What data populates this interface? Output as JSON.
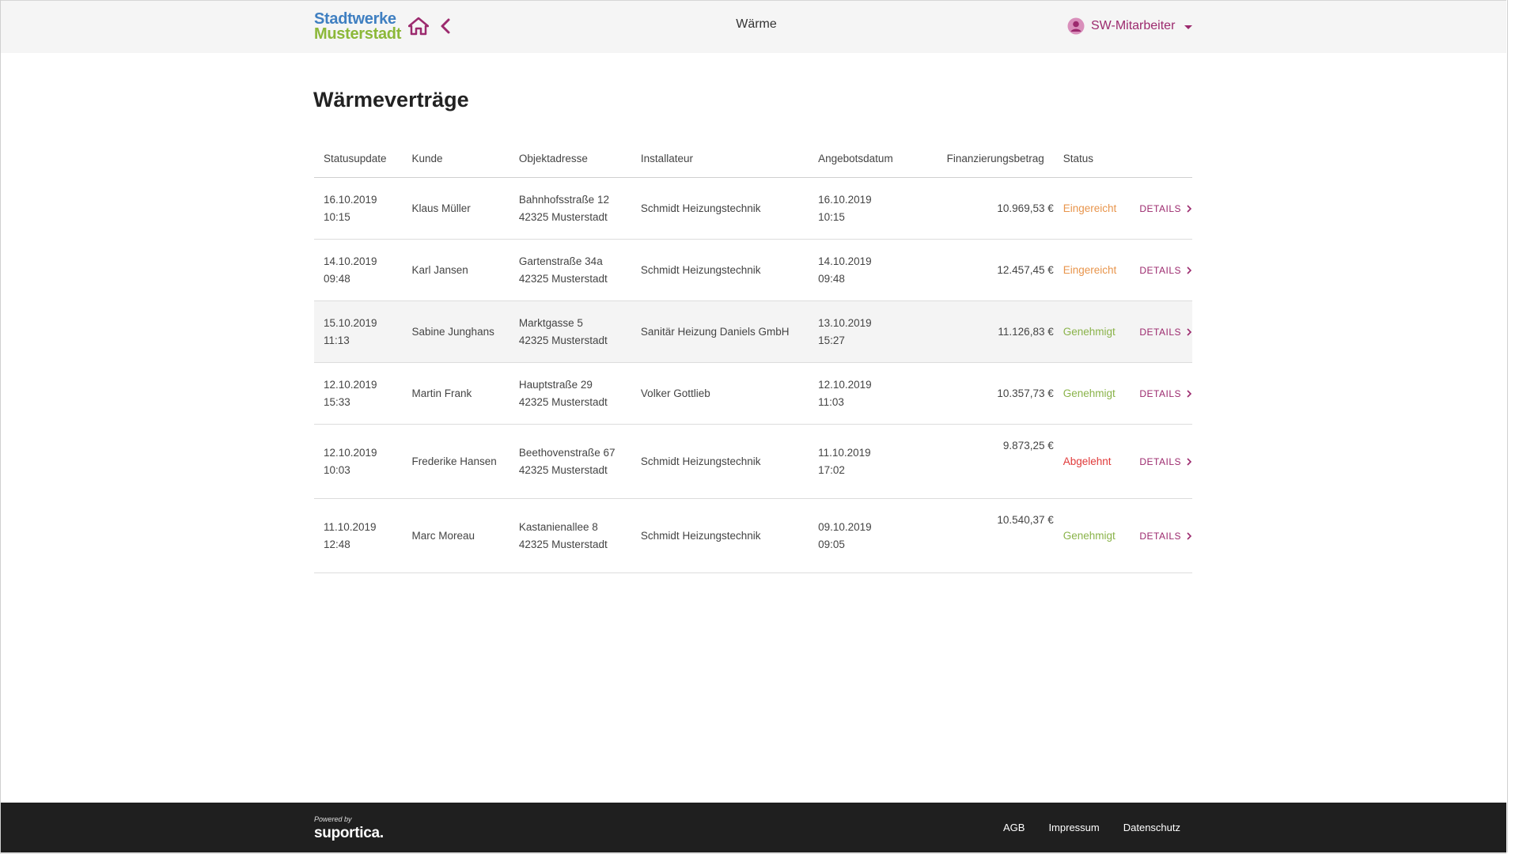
{
  "header": {
    "logo_line1": "Stadtwerke",
    "logo_line2": "Musterstadt",
    "title": "Wärme",
    "user_label": "SW-Mitarbeiter",
    "home_icon": "home-icon",
    "back_icon": "chevron-left-icon",
    "user_icon": "user-avatar-icon",
    "accent_color": "#9c2a6e"
  },
  "main": {
    "title": "Wärmeverträge",
    "columns": [
      "Statusupdate",
      "Kunde",
      "Objektadresse",
      "Installateur",
      "Angebotsdatum",
      "Finanzierungsbetrag",
      "Status",
      ""
    ],
    "details_label": "DETAILS",
    "rows": [
      {
        "update_date": "16.10.2019",
        "update_time": "10:15",
        "kunde": "Klaus Müller",
        "street": "Bahnhofsstraße 12",
        "city": "42325 Musterstadt",
        "installateur": "Schmidt Heizungstechnik",
        "offer_date": "16.10.2019",
        "offer_time": "10:15",
        "betrag": "10.969,53 €",
        "status": "Eingereicht"
      },
      {
        "update_date": "14.10.2019",
        "update_time": "09:48",
        "kunde": "Karl Jansen",
        "street": "Gartenstraße 34a",
        "city": "42325 Musterstadt",
        "installateur": "Schmidt Heizungstechnik",
        "offer_date": "14.10.2019",
        "offer_time": "09:48",
        "betrag": "12.457,45 €",
        "status": "Eingereicht"
      },
      {
        "update_date": "15.10.2019",
        "update_time": "11:13",
        "kunde": "Sabine Junghans",
        "street": "Marktgasse 5",
        "city": "42325 Musterstadt",
        "installateur": "Sanitär Heizung Daniels GmbH",
        "offer_date": "13.10.2019",
        "offer_time": "15:27",
        "betrag": "11.126,83 €",
        "status": "Genehmigt"
      },
      {
        "update_date": "12.10.2019",
        "update_time": "15:33",
        "kunde": "Martin Frank",
        "street": "Hauptstraße 29",
        "city": "42325 Musterstadt",
        "installateur": "Volker Gottlieb",
        "offer_date": "12.10.2019",
        "offer_time": "11:03",
        "betrag": "10.357,73 €",
        "status": "Genehmigt"
      },
      {
        "update_date": "12.10.2019",
        "update_time": "10:03",
        "kunde": "Frederike Hansen",
        "street": "Beethovenstraße 67",
        "city": "42325 Musterstadt",
        "installateur": "Schmidt Heizungstechnik",
        "offer_date": "11.10.2019",
        "offer_time": "17:02",
        "betrag": "9.873,25 €",
        "status": "Abgelehnt"
      },
      {
        "update_date": "11.10.2019",
        "update_time": "12:48",
        "kunde": "Marc Moreau",
        "street": "Kastanienallee 8",
        "city": "42325 Musterstadt",
        "installateur": "Schmidt Heizungstechnik",
        "offer_date": "09.10.2019",
        "offer_time": "09:05",
        "betrag": "10.540,37 €",
        "status": "Genehmigt"
      }
    ],
    "status_colors": {
      "Eingereicht": "#e8954c",
      "Genehmigt": "#8ab34a",
      "Abgelehnt": "#e03a3a"
    }
  },
  "footer": {
    "powered_by": "Powered by",
    "brand": "suportica.",
    "links": [
      "AGB",
      "Impressum",
      "Datenschutz"
    ]
  }
}
